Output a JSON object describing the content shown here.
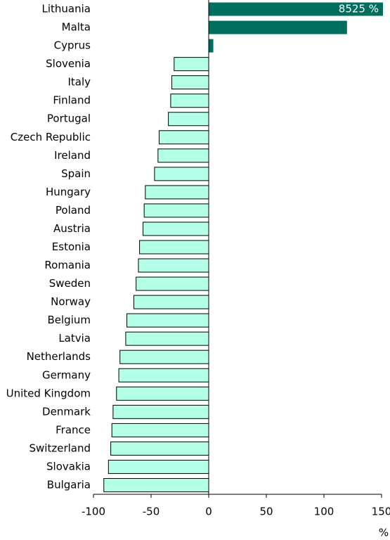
{
  "chart_data": {
    "type": "barh",
    "categories": [
      "Lithuania",
      "Malta",
      "Cyprus",
      "Slovenia",
      "Italy",
      "Finland",
      "Portugal",
      "Czech Republic",
      "Ireland",
      "Spain",
      "Hungary",
      "Poland",
      "Austria",
      "Estonia",
      "Romania",
      "Sweden",
      "Norway",
      "Belgium",
      "Latvia",
      "Netherlands",
      "Germany",
      "United Kingdom",
      "Denmark",
      "France",
      "Switzerland",
      "Slovakia",
      "Bulgaria"
    ],
    "values": [
      8525,
      120,
      4,
      -30,
      -32,
      -33,
      -35,
      -43,
      -44,
      -47,
      -55,
      -56,
      -57,
      -60,
      -61,
      -63,
      -65,
      -71,
      -72,
      -77,
      -78,
      -80,
      -83,
      -84,
      -85,
      -87,
      -91
    ],
    "value_labels": [
      "8525 %",
      null,
      null,
      null,
      null,
      null,
      null,
      null,
      null,
      null,
      null,
      null,
      null,
      null,
      null,
      null,
      null,
      null,
      null,
      null,
      null,
      null,
      null,
      null,
      null,
      null,
      null
    ],
    "positive_color": "#006e5f",
    "negative_color": "#b3ffe8",
    "xlim": [
      -100,
      150
    ],
    "xticks": [
      -100,
      -50,
      0,
      50,
      100,
      150
    ],
    "x_label": "%"
  }
}
